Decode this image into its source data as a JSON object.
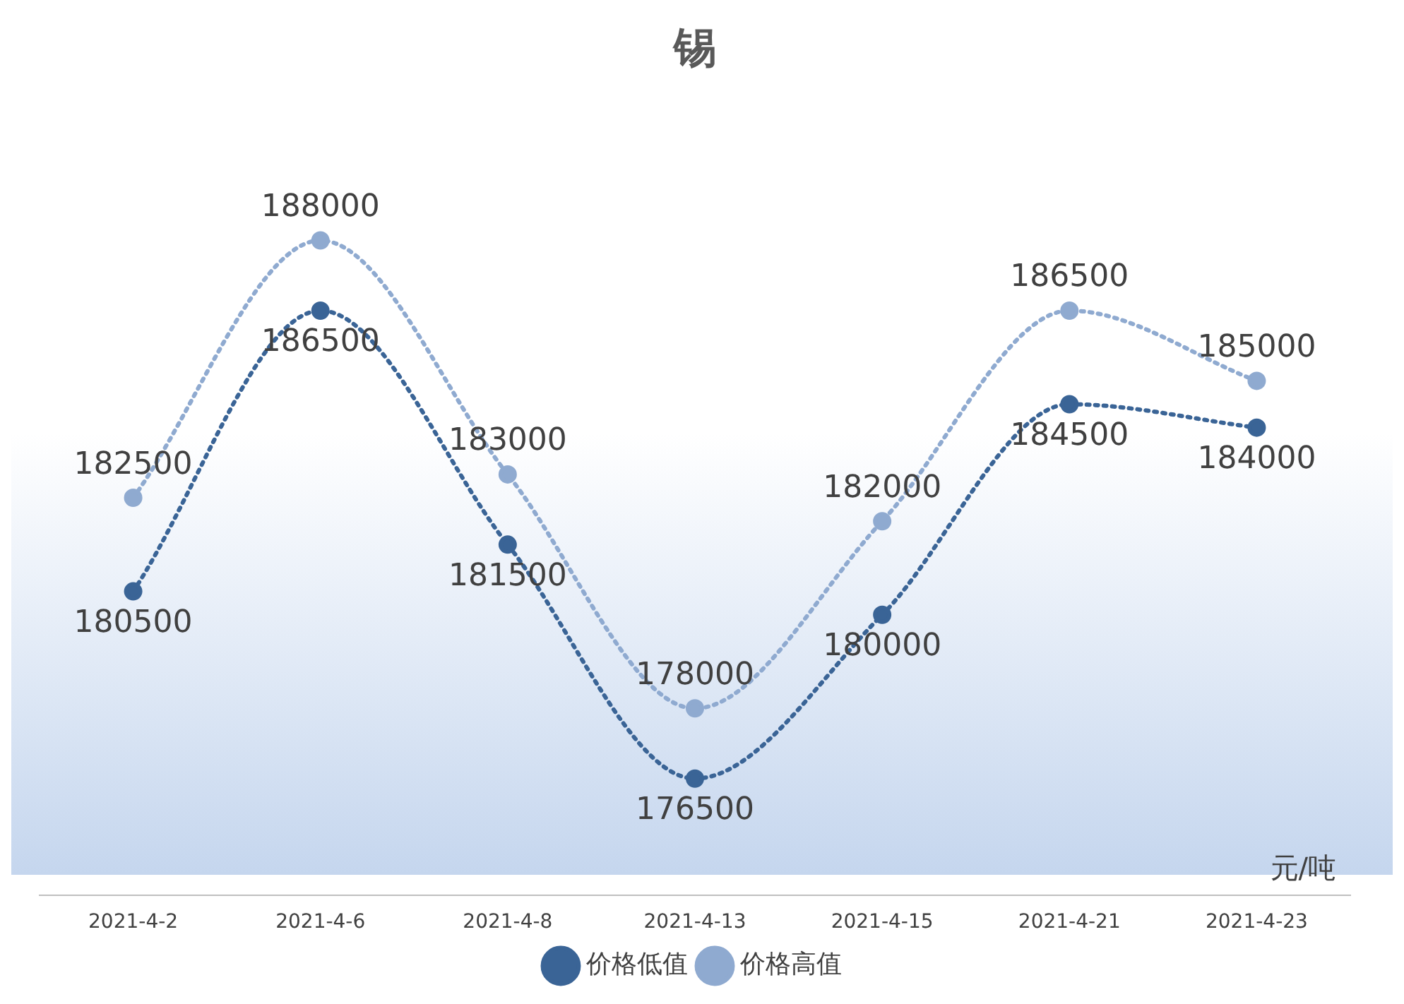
{
  "chart_data": {
    "type": "line",
    "title": "锡",
    "categories": [
      "2021-4-2",
      "2021-4-6",
      "2021-4-8",
      "2021-4-13",
      "2021-4-15",
      "2021-4-21",
      "2021-4-23"
    ],
    "series": [
      {
        "name": "价格低值",
        "color": "#3a6496",
        "values": [
          180500,
          186500,
          181500,
          176500,
          180000,
          184500,
          184000
        ]
      },
      {
        "name": "价格高值",
        "color": "#8faad0",
        "values": [
          182500,
          188000,
          183000,
          178000,
          182000,
          186500,
          185000
        ]
      }
    ],
    "annotations": [
      "元/吨"
    ],
    "data_labels": true,
    "legend": "bottom",
    "marker": "circle",
    "line_style": "dotted",
    "grid": false,
    "tick_labels": "x"
  }
}
